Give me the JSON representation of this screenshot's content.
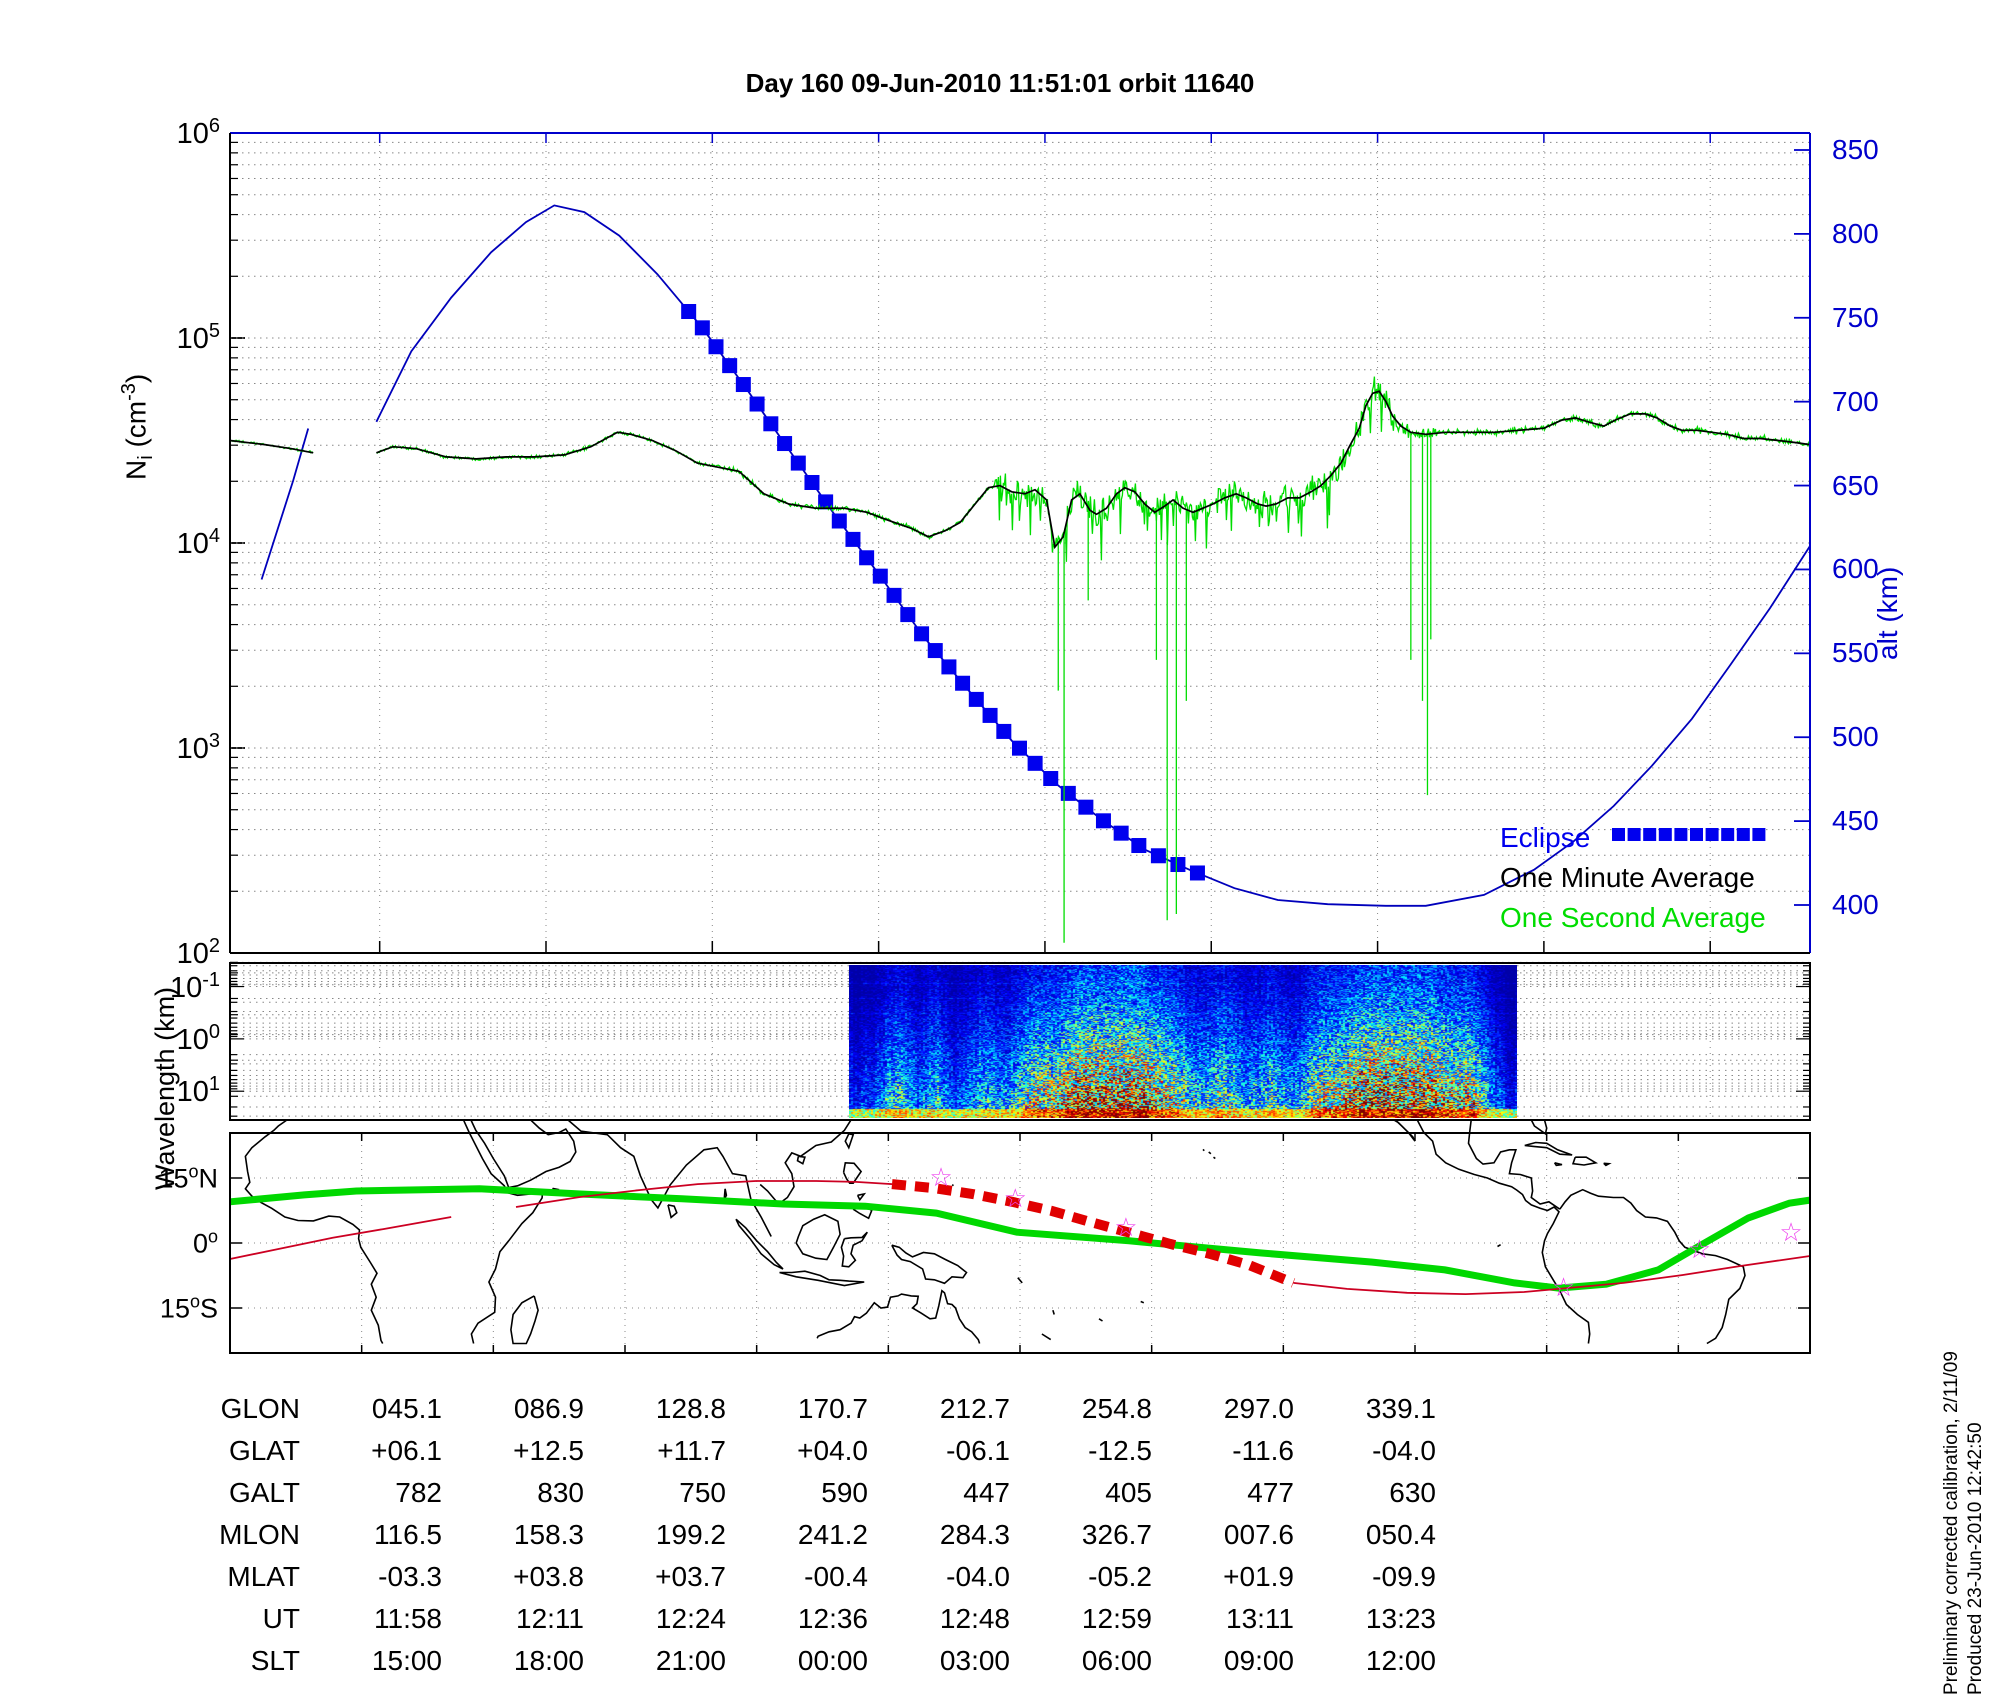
{
  "title": "Day 160  09-Jun-2010 11:51:01   orbit 11640",
  "colors": {
    "altitude_blue": "#0000bb",
    "eclipse_blue": "#0000ee",
    "axis_blue": "#0000cc",
    "second_green": "#00dd00",
    "minute_black": "#000000",
    "track_red": "#cc0022",
    "eclipse_track_red": "#e00000",
    "map_green": "#00d800",
    "star_magenta": "#ee44ee",
    "grid_gray": "#888888"
  },
  "axes": {
    "ni_label": {
      "pre": "N",
      "sub": "i",
      "mid": " (cm",
      "sup": "-3",
      "post": ")"
    },
    "ni_ticks": [
      {
        "base": "10",
        "exp": "6"
      },
      {
        "base": "10",
        "exp": "5"
      },
      {
        "base": "10",
        "exp": "4"
      },
      {
        "base": "10",
        "exp": "3"
      },
      {
        "base": "10",
        "exp": "2"
      }
    ],
    "alt_label": "alt (km)",
    "alt_ticks": [
      "850",
      "800",
      "750",
      "700",
      "650",
      "600",
      "550",
      "500",
      "450",
      "400"
    ],
    "wl_label": "Wavelength (km)",
    "wl_ticks": [
      {
        "base": "10",
        "exp": "-1"
      },
      {
        "base": "10",
        "exp": "0"
      },
      {
        "base": "10",
        "exp": "1"
      }
    ],
    "map_ticks": [
      {
        "num": "15",
        "deg": "o",
        "dir": "N"
      },
      {
        "num": "0",
        "deg": "o",
        "dir": ""
      },
      {
        "num": "15",
        "deg": "o",
        "dir": "S"
      }
    ]
  },
  "legend": {
    "eclipse": "Eclipse",
    "minute": "One Minute Average",
    "second": "One Second Average"
  },
  "side_notes": {
    "line1": "Preliminary corrected calibration, 2/11/09",
    "line2": "Produced 23-Jun-2010 12:42:50"
  },
  "table": {
    "rows": [
      {
        "label": "GLON",
        "values": [
          "045.1",
          "086.9",
          "128.8",
          "170.7",
          "212.7",
          "254.8",
          "297.0",
          "339.1"
        ]
      },
      {
        "label": "GLAT",
        "values": [
          "+06.1",
          "+12.5",
          "+11.7",
          "+04.0",
          "-06.1",
          "-12.5",
          "-11.6",
          "-04.0"
        ]
      },
      {
        "label": "GALT",
        "values": [
          "782",
          "830",
          "750",
          "590",
          "447",
          "405",
          "477",
          "630"
        ]
      },
      {
        "label": "MLON",
        "values": [
          "116.5",
          "158.3",
          "199.2",
          "241.2",
          "284.3",
          "326.7",
          "007.6",
          "050.4"
        ]
      },
      {
        "label": "MLAT",
        "values": [
          "-03.3",
          "+03.8",
          "+03.7",
          "-00.4",
          "-04.0",
          "-05.2",
          "+01.9",
          "-09.9"
        ]
      },
      {
        "label": "UT",
        "values": [
          "11:58",
          "12:11",
          "12:24",
          "12:36",
          "12:48",
          "12:59",
          "13:11",
          "13:23"
        ]
      },
      {
        "label": "SLT",
        "values": [
          "15:00",
          "18:00",
          "21:00",
          "00:00",
          "03:00",
          "06:00",
          "09:00",
          "12:00"
        ]
      }
    ]
  },
  "chart_data": {
    "type": "line",
    "time_span_minutes": 95,
    "start_ut": "11:51:01",
    "ni_axis": {
      "scale": "log",
      "min_exp": 2,
      "max_exp": 6
    },
    "alt_axis": {
      "min": 400,
      "max": 850
    },
    "altitude_km_pre_gap": [
      [
        1.9,
        594
      ],
      [
        3.8,
        653
      ],
      [
        4.7,
        684
      ]
    ],
    "altitude_km": [
      [
        8.8,
        688
      ],
      [
        10.9,
        730
      ],
      [
        13.3,
        762
      ],
      [
        15.7,
        789
      ],
      [
        17.8,
        807
      ],
      [
        19.5,
        817
      ],
      [
        21.3,
        813
      ],
      [
        23.4,
        799
      ],
      [
        25.7,
        776
      ],
      [
        28.4,
        744
      ],
      [
        31.1,
        707
      ],
      [
        33.7,
        670
      ],
      [
        36.4,
        632
      ],
      [
        39.1,
        596
      ],
      [
        41.7,
        560
      ],
      [
        44.4,
        528
      ],
      [
        47,
        498
      ],
      [
        49.7,
        472
      ],
      [
        52.4,
        451
      ],
      [
        55,
        433
      ],
      [
        57.7,
        421
      ],
      [
        60.4,
        410
      ],
      [
        63,
        403
      ],
      [
        66,
        400.5
      ],
      [
        69.5,
        399.5
      ],
      [
        71.9,
        399.5
      ],
      [
        75.4,
        406
      ],
      [
        78.4,
        421
      ],
      [
        80.8,
        438
      ],
      [
        83.2,
        459
      ],
      [
        85.5,
        483
      ],
      [
        87.9,
        511
      ],
      [
        90.2,
        543
      ],
      [
        92.6,
        577
      ],
      [
        95,
        614
      ]
    ],
    "eclipse_t_range": [
      27.5,
      58.9
    ],
    "ni_minute_log10_pre_gap": [
      [
        0,
        4.5
      ],
      [
        2.1,
        4.48
      ],
      [
        3.7,
        4.46
      ],
      [
        5,
        4.44
      ]
    ],
    "ni_minute_log10": [
      [
        8.8,
        4.44
      ],
      [
        9.8,
        4.47
      ],
      [
        11.2,
        4.46
      ],
      [
        13,
        4.42
      ],
      [
        14.8,
        4.41
      ],
      [
        16.6,
        4.42
      ],
      [
        18.3,
        4.42
      ],
      [
        20.1,
        4.43
      ],
      [
        21.7,
        4.47
      ],
      [
        23.3,
        4.54
      ],
      [
        24.1,
        4.53
      ],
      [
        25.4,
        4.5
      ],
      [
        26.8,
        4.45
      ],
      [
        28.1,
        4.39
      ],
      [
        29.3,
        4.37
      ],
      [
        30.6,
        4.35
      ],
      [
        32.1,
        4.24
      ],
      [
        33.6,
        4.19
      ],
      [
        35.2,
        4.17
      ],
      [
        36.9,
        4.17
      ],
      [
        38.3,
        4.15
      ],
      [
        39.6,
        4.11
      ],
      [
        41,
        4.07
      ],
      [
        42,
        4.03
      ],
      [
        43,
        4.06
      ],
      [
        43.9,
        4.1
      ],
      [
        44.8,
        4.19
      ],
      [
        45.6,
        4.27
      ],
      [
        46.3,
        4.28
      ],
      [
        47,
        4.25
      ],
      [
        47.8,
        4.24
      ],
      [
        48.4,
        4.26
      ],
      [
        49.1,
        4.21
      ],
      [
        49.6,
        3.98
      ],
      [
        50.1,
        4.03
      ],
      [
        50.6,
        4.21
      ],
      [
        51.1,
        4.24
      ],
      [
        51.7,
        4.16
      ],
      [
        52.1,
        4.14
      ],
      [
        52.7,
        4.17
      ],
      [
        53.3,
        4.24
      ],
      [
        53.8,
        4.27
      ],
      [
        54.4,
        4.25
      ],
      [
        55,
        4.19
      ],
      [
        55.6,
        4.15
      ],
      [
        56.2,
        4.18
      ],
      [
        56.7,
        4.21
      ],
      [
        57.3,
        4.17
      ],
      [
        57.9,
        4.15
      ],
      [
        58.5,
        4.17
      ],
      [
        59.1,
        4.19
      ],
      [
        59.8,
        4.22
      ],
      [
        60.5,
        4.24
      ],
      [
        61.1,
        4.22
      ],
      [
        61.8,
        4.19
      ],
      [
        62.3,
        4.18
      ],
      [
        62.9,
        4.19
      ],
      [
        63.6,
        4.22
      ],
      [
        64.3,
        4.22
      ],
      [
        65,
        4.25
      ],
      [
        65.6,
        4.28
      ],
      [
        66.2,
        4.33
      ],
      [
        66.8,
        4.39
      ],
      [
        67.3,
        4.47
      ],
      [
        67.9,
        4.56
      ],
      [
        68.3,
        4.67
      ],
      [
        68.7,
        4.73
      ],
      [
        69.1,
        4.74
      ],
      [
        69.5,
        4.69
      ],
      [
        69.9,
        4.62
      ],
      [
        70.4,
        4.57
      ],
      [
        71,
        4.54
      ],
      [
        71.9,
        4.53
      ],
      [
        73.1,
        4.54
      ],
      [
        74.6,
        4.54
      ],
      [
        76,
        4.54
      ],
      [
        77.5,
        4.55
      ],
      [
        79,
        4.56
      ],
      [
        80.1,
        4.6
      ],
      [
        80.9,
        4.61
      ],
      [
        81.7,
        4.59
      ],
      [
        82.6,
        4.57
      ],
      [
        83.3,
        4.6
      ],
      [
        84.2,
        4.63
      ],
      [
        85.1,
        4.63
      ],
      [
        85.8,
        4.61
      ],
      [
        86.6,
        4.57
      ],
      [
        87.3,
        4.55
      ],
      [
        88.2,
        4.55
      ],
      [
        89.1,
        4.54
      ],
      [
        90,
        4.53
      ],
      [
        91,
        4.51
      ],
      [
        92,
        4.51
      ],
      [
        93.1,
        4.5
      ],
      [
        94.1,
        4.49
      ],
      [
        95,
        4.48
      ]
    ],
    "noise_envelope": [
      [
        0,
        5,
        0.008
      ],
      [
        8.8,
        29,
        0.012
      ],
      [
        29,
        46,
        0.018
      ],
      [
        46,
        70,
        0.1
      ],
      [
        70,
        72.5,
        0.05
      ],
      [
        72.5,
        95,
        0.022
      ]
    ],
    "spikes_t_log10": [
      [
        49.8,
        3.28
      ],
      [
        50.15,
        2.05
      ],
      [
        51.6,
        3.72
      ],
      [
        55.7,
        3.43
      ],
      [
        56.35,
        2.16
      ],
      [
        56.9,
        2.19
      ],
      [
        57.5,
        3.23
      ],
      [
        71.0,
        3.43
      ],
      [
        71.7,
        3.23
      ],
      [
        72.0,
        2.77
      ],
      [
        72.2,
        3.53
      ]
    ],
    "gridline_minutes": [
      9,
      19,
      29,
      39,
      49,
      59,
      69,
      79,
      89
    ],
    "spectrogram": {
      "u_range": [
        0.392,
        0.815
      ],
      "bursts": [
        [
          0.07,
          0.02,
          0.35
        ],
        [
          0.13,
          0.015,
          0.3
        ],
        [
          0.2,
          0.02,
          0.32
        ],
        [
          0.27,
          0.025,
          0.45
        ],
        [
          0.36,
          0.045,
          1.0
        ],
        [
          0.415,
          0.03,
          0.8
        ],
        [
          0.48,
          0.03,
          0.55
        ],
        [
          0.56,
          0.025,
          0.45
        ],
        [
          0.63,
          0.02,
          0.4
        ],
        [
          0.7,
          0.02,
          0.35
        ],
        [
          0.78,
          0.05,
          0.95
        ],
        [
          0.86,
          0.04,
          0.8
        ],
        [
          0.93,
          0.02,
          0.5
        ]
      ]
    },
    "map": {
      "lon_gridline_count": 11,
      "lat_gridlines": [
        15,
        0,
        -15
      ],
      "dip_equator_u_lat": [
        [
          0,
          9.5
        ],
        [
          0.047,
          11.1
        ],
        [
          0.08,
          12.0
        ],
        [
          0.158,
          12.5
        ],
        [
          0.222,
          11.3
        ],
        [
          0.286,
          10.2
        ],
        [
          0.35,
          9.0
        ],
        [
          0.402,
          8.5
        ],
        [
          0.447,
          6.9
        ],
        [
          0.498,
          2.5
        ],
        [
          0.569,
          0.5
        ],
        [
          0.653,
          -2.3
        ],
        [
          0.723,
          -4.4
        ],
        [
          0.769,
          -6.2
        ],
        [
          0.813,
          -9.2
        ],
        [
          0.841,
          -10.4
        ],
        [
          0.871,
          -9.5
        ],
        [
          0.904,
          -6.2
        ],
        [
          0.929,
          -0.9
        ],
        [
          0.961,
          5.8
        ],
        [
          0.987,
          9.2
        ],
        [
          1,
          9.9
        ]
      ],
      "track_pre_u_lat": [
        [
          0,
          -3.7
        ],
        [
          0.028,
          -1.6
        ],
        [
          0.065,
          1.2
        ],
        [
          0.097,
          3.2
        ],
        [
          0.14,
          6.0
        ]
      ],
      "track_mid_u_lat": [
        [
          0.181,
          8.3
        ],
        [
          0.221,
          10.6
        ],
        [
          0.259,
          12.2
        ],
        [
          0.296,
          13.6
        ],
        [
          0.333,
          14.3
        ],
        [
          0.371,
          14.3
        ],
        [
          0.396,
          14.1
        ],
        [
          0.419,
          13.6
        ]
      ],
      "eclipse_track_u_lat": [
        [
          0.419,
          13.6
        ],
        [
          0.445,
          12.7
        ],
        [
          0.47,
          11.3
        ],
        [
          0.495,
          9.5
        ],
        [
          0.52,
          7.4
        ],
        [
          0.545,
          4.8
        ],
        [
          0.57,
          2.3
        ],
        [
          0.595,
          -0.2
        ],
        [
          0.62,
          -2.5
        ],
        [
          0.645,
          -5.1
        ],
        [
          0.673,
          -9.2
        ]
      ],
      "track_post_u_lat": [
        [
          0.673,
          -9.2
        ],
        [
          0.707,
          -10.6
        ],
        [
          0.745,
          -11.5
        ],
        [
          0.782,
          -11.8
        ],
        [
          0.819,
          -11.3
        ],
        [
          0.846,
          -10.4
        ],
        [
          0.882,
          -9.2
        ],
        [
          0.919,
          -7.4
        ],
        [
          0.956,
          -5.3
        ],
        [
          1,
          -3.0
        ]
      ],
      "stars_u_lat": [
        [
          0.45,
          15.2
        ],
        [
          0.497,
          10.4
        ],
        [
          0.567,
          3.7
        ],
        [
          0.844,
          -10.2
        ],
        [
          0.93,
          -1.4
        ],
        [
          0.988,
          2.5
        ]
      ]
    }
  }
}
